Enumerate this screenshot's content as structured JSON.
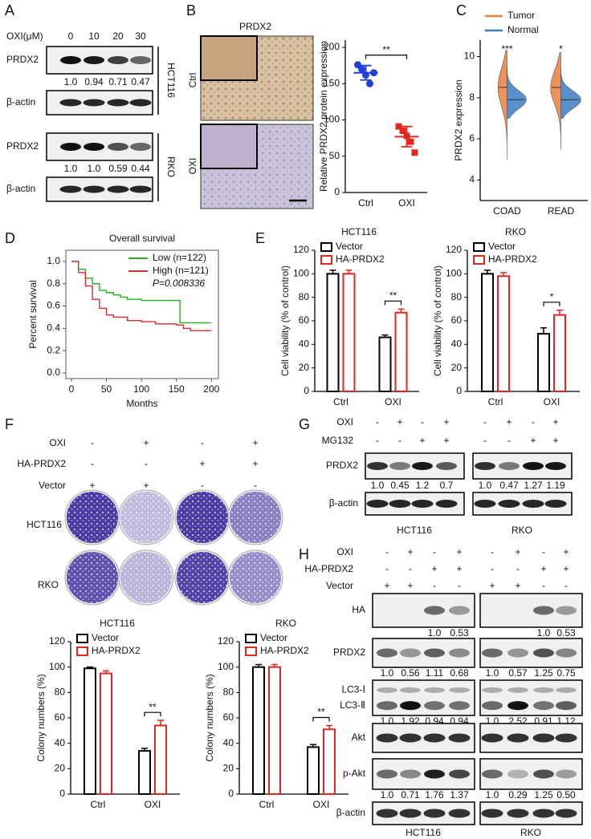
{
  "panels": {
    "A": {
      "letter": "A",
      "treatment_label": "OXI(μM)",
      "doses": [
        "0",
        "10",
        "20",
        "30"
      ],
      "blots": [
        {
          "cell_line": "HCT116",
          "rows": [
            "PRDX2",
            "β-actin"
          ],
          "quant": [
            "1.0",
            "0.94",
            "0.71",
            "0.47"
          ]
        },
        {
          "cell_line": "RKO",
          "rows": [
            "PRDX2",
            "β-actin"
          ],
          "quant": [
            "1.0",
            "1.0",
            "0.59",
            "0.44"
          ]
        }
      ]
    },
    "B": {
      "letter": "B",
      "image_title": "PRDX2",
      "image_labels": [
        "Ctrl",
        "OXI"
      ]
    },
    "C": {
      "letter": "C"
    },
    "D": {
      "letter": "D"
    },
    "E": {
      "letter": "E"
    },
    "F": {
      "letter": "F",
      "rows": [
        {
          "label": "OXI",
          "signs": [
            "-",
            "+",
            "-",
            "+"
          ]
        },
        {
          "label": "HA-PRDX2",
          "signs": [
            "-",
            "-",
            "+",
            "+"
          ]
        },
        {
          "label": "Vector",
          "signs": [
            "+",
            "+",
            "-",
            "-"
          ]
        }
      ],
      "cell_lines": [
        "HCT116",
        "RKO"
      ]
    },
    "G": {
      "letter": "G",
      "rows": [
        {
          "label": "OXI",
          "signs": [
            "-",
            "+",
            "-",
            "+"
          ]
        },
        {
          "label": "MG132",
          "signs": [
            "-",
            "-",
            "+",
            "+"
          ]
        }
      ],
      "blots": [
        "PRDX2",
        "β-actin"
      ],
      "cell_lines": [
        {
          "name": "HCT116",
          "quant": [
            "1.0",
            "0.45",
            "1.2",
            "0.7"
          ]
        },
        {
          "name": "RKO",
          "quant": [
            "1.0",
            "0.47",
            "1.27",
            "1.19"
          ]
        }
      ]
    },
    "H": {
      "letter": "H",
      "rows": [
        {
          "label": "OXI",
          "signs": [
            "-",
            "+",
            "-",
            "+"
          ]
        },
        {
          "label": "HA-PRDX2",
          "signs": [
            "-",
            "-",
            "+",
            "+"
          ]
        },
        {
          "label": "Vector",
          "signs": [
            "+",
            "+",
            "-",
            "-"
          ]
        }
      ],
      "cell_lines": [
        "HCT116",
        "RKO"
      ],
      "blots": [
        {
          "labels": [
            "HA"
          ],
          "quant": [
            [
              "1.0",
              "0.53"
            ],
            [
              "1.0",
              "0.53"
            ]
          ]
        },
        {
          "labels": [
            "PRDX2"
          ],
          "quant": [
            [
              "1.0",
              "0.56",
              "1.11",
              "0.68"
            ],
            [
              "1.0",
              "0.57",
              "1.25",
              "0.75"
            ]
          ]
        },
        {
          "labels": [
            "LC3-Ⅰ",
            "LC3-Ⅱ"
          ],
          "quant": [
            [
              "1.0",
              "1.92",
              "0.94",
              "0.94"
            ],
            [
              "1.0",
              "2.52",
              "0.91",
              "1.12"
            ]
          ]
        },
        {
          "labels": [
            "Akt"
          ]
        },
        {
          "labels": [
            "p-Akt"
          ],
          "quant": [
            [
              "1.0",
              "0.71",
              "1.76",
              "1.37"
            ],
            [
              "1.0",
              "0.29",
              "1.25",
              "0.50"
            ]
          ]
        },
        {
          "labels": [
            "β-actin"
          ]
        }
      ]
    }
  },
  "chart_data": [
    {
      "type": "dot",
      "categories": [
        "Ctrl",
        "OXI"
      ],
      "points": [
        [
          176,
          170,
          162,
          150,
          165
        ],
        [
          91,
          85,
          78,
          70,
          55
        ]
      ],
      "means": [
        165,
        77
      ],
      "sds": [
        10,
        14
      ],
      "colors": [
        "#1f3fd6",
        "#e3261f"
      ],
      "markers": [
        "circle",
        "square"
      ],
      "ylim": [
        0,
        210
      ],
      "yticks": [
        0,
        50,
        100,
        150,
        200
      ],
      "ylabel": "Relative PRDX2 protein expression",
      "annotations": [
        {
          "text": "**",
          "categories": [
            "Ctrl",
            "OXI"
          ]
        }
      ]
    },
    {
      "type": "violin",
      "categories": [
        "COAD",
        "READ"
      ],
      "ylim": [
        3,
        10.8
      ],
      "yticks": [
        4,
        6,
        8,
        10
      ],
      "ylabel": "PRDX2 expression",
      "series": [
        {
          "name": "Tumor",
          "color": "#ea7f3c",
          "min": [
            5.0,
            5.5
          ],
          "median": [
            8.5,
            8.5
          ],
          "max": [
            10.3,
            10.2
          ]
        },
        {
          "name": "Normal",
          "color": "#3a7cc3",
          "min": [
            7.0,
            7.0
          ],
          "median": [
            7.9,
            7.9
          ],
          "max": [
            9.5,
            9.4
          ]
        }
      ],
      "annotations": [
        {
          "text": "***",
          "category": "COAD"
        },
        {
          "text": "*",
          "category": "READ"
        }
      ]
    },
    {
      "type": "survival",
      "title": "Overall survival",
      "xlabel": "Months",
      "ylabel": "Percent survival",
      "xlim": [
        -8,
        210
      ],
      "xticks": [
        0,
        50,
        100,
        150,
        200
      ],
      "ylim": [
        -0.05,
        1.1
      ],
      "yticks": [
        {
          "value": 0,
          "label": "0.0"
        },
        0.2,
        0.4,
        0.6,
        0.8,
        {
          "value": 1,
          "label": "1.0"
        }
      ],
      "legend": "upper right",
      "annotation": "P=0.008336",
      "series": [
        {
          "name": "Low (n=122)",
          "color": "#22b022",
          "x": [
            0,
            10,
            20,
            30,
            40,
            50,
            60,
            70,
            80,
            100,
            150,
            155,
            160,
            200
          ],
          "values": [
            1,
            0.93,
            0.85,
            0.8,
            0.74,
            0.72,
            0.7,
            0.68,
            0.66,
            0.65,
            0.65,
            0.45,
            0.45,
            0.45
          ]
        },
        {
          "name": "High (n=121)",
          "color": "#e0262e",
          "x": [
            0,
            10,
            20,
            30,
            40,
            50,
            60,
            80,
            100,
            120,
            150,
            160,
            170,
            200
          ],
          "values": [
            1,
            0.9,
            0.78,
            0.66,
            0.58,
            0.52,
            0.5,
            0.47,
            0.46,
            0.44,
            0.43,
            0.4,
            0.38,
            0.38
          ]
        }
      ]
    },
    {
      "type": "bar",
      "title": "HCT116",
      "ylabel": "Cell viability  (% of control)",
      "categories": [
        "Ctrl",
        "OXI"
      ],
      "ylim": [
        0,
        120
      ],
      "yticks": [
        0,
        20,
        40,
        60,
        80,
        100,
        120
      ],
      "series": [
        {
          "name": "Vector",
          "color": "#000000",
          "values": [
            100,
            46
          ],
          "errors": [
            3,
            2
          ]
        },
        {
          "name": "HA-PRDX2",
          "color": "#e3261f",
          "values": [
            100,
            67
          ],
          "errors": [
            3,
            3
          ]
        }
      ],
      "annotations": [
        {
          "text": "**",
          "category": "OXI"
        }
      ]
    },
    {
      "type": "bar",
      "title": "RKO",
      "ylabel": "Cell viability  (% of control)",
      "categories": [
        "Ctrl",
        "OXI"
      ],
      "ylim": [
        0,
        120
      ],
      "yticks": [
        0,
        20,
        40,
        60,
        80,
        100,
        120
      ],
      "series": [
        {
          "name": "Vector",
          "color": "#000000",
          "values": [
            100,
            49
          ],
          "errors": [
            3,
            5
          ]
        },
        {
          "name": "HA-PRDX2",
          "color": "#e3261f",
          "values": [
            98,
            65
          ],
          "errors": [
            3,
            4
          ]
        }
      ],
      "annotations": [
        {
          "text": "*",
          "category": "OXI"
        }
      ]
    },
    {
      "type": "bar",
      "title": "HCT116",
      "ylabel": "Colony numbers (%)",
      "categories": [
        "Ctrl",
        "OXI"
      ],
      "ylim": [
        0,
        120
      ],
      "yticks": [
        0,
        20,
        40,
        60,
        80,
        100,
        120
      ],
      "series": [
        {
          "name": "Vector",
          "color": "#000000",
          "values": [
            99,
            34
          ],
          "errors": [
            1,
            2
          ]
        },
        {
          "name": "HA-PRDX2",
          "color": "#e3261f",
          "values": [
            95,
            54
          ],
          "errors": [
            2,
            4
          ]
        }
      ],
      "annotations": [
        {
          "text": "**",
          "category": "OXI"
        }
      ]
    },
    {
      "type": "bar",
      "title": "RKO",
      "ylabel": "Colony numbers (%)",
      "categories": [
        "Ctrl",
        "OXI"
      ],
      "ylim": [
        0,
        120
      ],
      "yticks": [
        0,
        20,
        40,
        60,
        80,
        100,
        120
      ],
      "series": [
        {
          "name": "Vector",
          "color": "#000000",
          "values": [
            100,
            37
          ],
          "errors": [
            2,
            2
          ]
        },
        {
          "name": "HA-PRDX2",
          "color": "#e3261f",
          "values": [
            100,
            51
          ],
          "errors": [
            2,
            3
          ]
        }
      ],
      "annotations": [
        {
          "text": "**",
          "category": "OXI"
        }
      ]
    }
  ]
}
